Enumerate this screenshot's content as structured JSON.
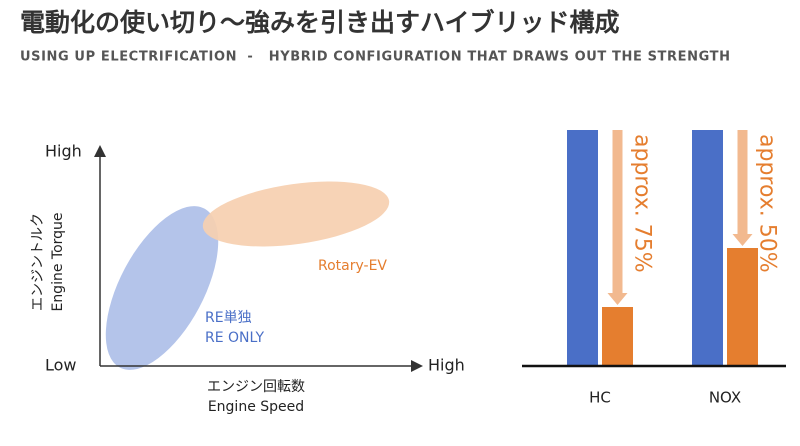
{
  "header": {
    "title": "電動化の使い切り～強みを引き出すハイブリッド構成",
    "subtitle": "USING UP ELECTRIFICATION  -   HYBRID CONFIGURATION THAT DRAWS OUT THE STRENGTH"
  },
  "diagram": {
    "y_high": "High",
    "y_low": "Low",
    "x_high": "High",
    "y_label": [
      "エンジントルク",
      "Engine Torque"
    ],
    "x_label": [
      "エンジン回転数",
      "Engine Speed"
    ],
    "regions": [
      {
        "label": [
          "RE単独",
          "RE ONLY"
        ],
        "color": "#b4c4ea"
      },
      {
        "label": [
          "Rotary-EV"
        ],
        "color": "#f6cfb0"
      }
    ]
  },
  "chart_data": {
    "type": "bar",
    "categories": [
      "HC",
      "NOX"
    ],
    "ylim": [
      0,
      100
    ],
    "series": [
      {
        "color": "#4a6fc7",
        "values": [
          100,
          100
        ]
      },
      {
        "color": "#e57e2f",
        "values": [
          25,
          50
        ]
      }
    ],
    "annotations": [
      "approx. 75%",
      "approx. 50%"
    ]
  }
}
